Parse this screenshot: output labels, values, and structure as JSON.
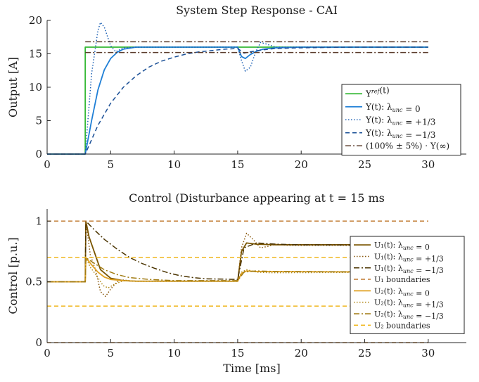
{
  "chart_data": [
    {
      "type": "line",
      "title": "System Step Response - CAI",
      "xlabel": "",
      "ylabel": "Output [A]",
      "xlim": [
        0,
        33
      ],
      "ylim": [
        0,
        20
      ],
      "xticks": [
        0,
        5,
        10,
        15,
        20,
        25,
        30
      ],
      "yticks": [
        0,
        5,
        10,
        15,
        20
      ],
      "legend_position": "bottom-right",
      "series": [
        {
          "name": "Y^{ref}(t)",
          "color": "#33b833",
          "style": "solid",
          "points": [
            [
              0,
              0
            ],
            [
              3,
              0
            ],
            [
              3,
              16
            ],
            [
              30,
              16
            ]
          ]
        },
        {
          "name": "Y(t): λ_unc = 0",
          "color": "#1f7fd6",
          "style": "solid",
          "points": [
            [
              0,
              0
            ],
            [
              3,
              0
            ],
            [
              3.5,
              5
            ],
            [
              4,
              9.6
            ],
            [
              4.5,
              12.6
            ],
            [
              5,
              14.3
            ],
            [
              5.5,
              15.2
            ],
            [
              6,
              15.7
            ],
            [
              7,
              16
            ],
            [
              15,
              16
            ],
            [
              15.3,
              14.6
            ],
            [
              15.6,
              14.3
            ],
            [
              16,
              14.9
            ],
            [
              16.5,
              15.4
            ],
            [
              17,
              15.7
            ],
            [
              18,
              15.9
            ],
            [
              20,
              16
            ],
            [
              30,
              16
            ]
          ]
        },
        {
          "name": "Y(t): λ_unc = +1/3",
          "color": "#1a5fb4",
          "style": "dotted",
          "points": [
            [
              0,
              0
            ],
            [
              3,
              0
            ],
            [
              3.5,
              12
            ],
            [
              4,
              18.5
            ],
            [
              4.2,
              19.7
            ],
            [
              4.5,
              19
            ],
            [
              5,
              16.2
            ],
            [
              5.4,
              15.3
            ],
            [
              6,
              15.9
            ],
            [
              7,
              16
            ],
            [
              15,
              16
            ],
            [
              15.3,
              14
            ],
            [
              15.6,
              12.4
            ],
            [
              16,
              13
            ],
            [
              16.4,
              15.2
            ],
            [
              16.8,
              16.7
            ],
            [
              17.2,
              16.5
            ],
            [
              18,
              16
            ],
            [
              30,
              16
            ]
          ]
        },
        {
          "name": "Y(t): λ_unc = −1/3",
          "color": "#1a4f96",
          "style": "dashed",
          "points": [
            [
              0,
              0
            ],
            [
              3,
              0
            ],
            [
              4,
              4.3
            ],
            [
              5,
              7.6
            ],
            [
              6,
              10
            ],
            [
              7,
              11.7
            ],
            [
              8,
              13
            ],
            [
              9,
              13.9
            ],
            [
              10,
              14.5
            ],
            [
              11,
              15
            ],
            [
              12,
              15.3
            ],
            [
              13,
              15.5
            ],
            [
              14,
              15.7
            ],
            [
              15,
              15.8
            ],
            [
              15.5,
              15.1
            ],
            [
              16,
              15.3
            ],
            [
              17,
              15.6
            ],
            [
              18,
              15.8
            ],
            [
              20,
              15.9
            ],
            [
              24,
              16
            ],
            [
              30,
              16
            ]
          ]
        },
        {
          "name": "(100% ± 5%) · Y(∞)",
          "color": "#5a3a2a",
          "style": "dashdot",
          "points": [
            [
              3,
              16.8
            ],
            [
              30,
              16.8
            ]
          ]
        },
        {
          "name": "(100% ± 5%) · Y(∞)",
          "color": "#5a3a2a",
          "style": "dashdot",
          "legend": false,
          "points": [
            [
              3,
              15.2
            ],
            [
              30,
              15.2
            ]
          ]
        }
      ]
    },
    {
      "type": "line",
      "title": "Control (Disturbance appearing at t = 15 ms",
      "xlabel": "Time [ms]",
      "ylabel": "Control [p.u.]",
      "xlim": [
        0,
        33
      ],
      "ylim": [
        0,
        1.1
      ],
      "xticks": [
        0,
        5,
        10,
        15,
        20,
        25,
        30
      ],
      "yticks": [
        0,
        0.5,
        1
      ],
      "legend_position": "right",
      "series": [
        {
          "name": "U₁(t): λ_unc = 0",
          "color": "#7a5500",
          "style": "solid",
          "points": [
            [
              0,
              0.5
            ],
            [
              3,
              0.5
            ],
            [
              3.05,
              1.0
            ],
            [
              3.3,
              0.87
            ],
            [
              3.7,
              0.75
            ],
            [
              4.2,
              0.6
            ],
            [
              5,
              0.53
            ],
            [
              6,
              0.51
            ],
            [
              7,
              0.505
            ],
            [
              15,
              0.505
            ],
            [
              15.3,
              0.75
            ],
            [
              15.7,
              0.82
            ],
            [
              16.5,
              0.81
            ],
            [
              18,
              0.805
            ],
            [
              30,
              0.805
            ]
          ]
        },
        {
          "name": "U₁(t): λ_unc = +1/3",
          "color": "#8a5a10",
          "style": "dotted",
          "points": [
            [
              0,
              0.5
            ],
            [
              3,
              0.5
            ],
            [
              3.05,
              1.0
            ],
            [
              3.4,
              0.72
            ],
            [
              3.8,
              0.6
            ],
            [
              4.2,
              0.42
            ],
            [
              4.6,
              0.38
            ],
            [
              5,
              0.44
            ],
            [
              5.5,
              0.5
            ],
            [
              6,
              0.515
            ],
            [
              7,
              0.505
            ],
            [
              15,
              0.505
            ],
            [
              15.3,
              0.78
            ],
            [
              15.7,
              0.9
            ],
            [
              16.2,
              0.85
            ],
            [
              16.8,
              0.78
            ],
            [
              17.3,
              0.79
            ],
            [
              18,
              0.81
            ],
            [
              19,
              0.8
            ],
            [
              30,
              0.8
            ]
          ]
        },
        {
          "name": "U₁(t): λ_unc = −1/3",
          "color": "#4a3300",
          "style": "dashdot",
          "points": [
            [
              0,
              0.5
            ],
            [
              3,
              0.5
            ],
            [
              3.05,
              1.0
            ],
            [
              3.7,
              0.93
            ],
            [
              4.5,
              0.85
            ],
            [
              5.5,
              0.77
            ],
            [
              6.5,
              0.7
            ],
            [
              7.5,
              0.65
            ],
            [
              8.5,
              0.61
            ],
            [
              9.5,
              0.575
            ],
            [
              10.5,
              0.55
            ],
            [
              11.5,
              0.535
            ],
            [
              12.5,
              0.525
            ],
            [
              15,
              0.52
            ],
            [
              15.5,
              0.78
            ],
            [
              16.5,
              0.82
            ],
            [
              18,
              0.81
            ],
            [
              20,
              0.805
            ],
            [
              30,
              0.8
            ]
          ]
        },
        {
          "name": "U₁ boundaries",
          "color": "#c07a30",
          "style": "dashed",
          "points": [
            [
              0,
              1
            ],
            [
              30,
              1
            ]
          ]
        },
        {
          "name": "U₁ boundaries",
          "color": "#c07a30",
          "style": "dashed",
          "legend": false,
          "points": [
            [
              0,
              0
            ],
            [
              30,
              0
            ]
          ]
        },
        {
          "name": "U₂(t): λ_unc = 0",
          "color": "#e0a020",
          "style": "solid",
          "points": [
            [
              0,
              0.5
            ],
            [
              3,
              0.5
            ],
            [
              3.05,
              0.7
            ],
            [
              3.5,
              0.64
            ],
            [
              4,
              0.58
            ],
            [
              4.5,
              0.54
            ],
            [
              5,
              0.52
            ],
            [
              6,
              0.51
            ],
            [
              7,
              0.505
            ],
            [
              15,
              0.505
            ],
            [
              15.3,
              0.57
            ],
            [
              15.7,
              0.59
            ],
            [
              16.5,
              0.585
            ],
            [
              30,
              0.58
            ]
          ]
        },
        {
          "name": "U₂(t): λ_unc = +1/3",
          "color": "#b08818",
          "style": "dotted",
          "points": [
            [
              0,
              0.5
            ],
            [
              3,
              0.5
            ],
            [
              3.05,
              0.7
            ],
            [
              3.4,
              0.62
            ],
            [
              3.9,
              0.55
            ],
            [
              4.4,
              0.47
            ],
            [
              4.8,
              0.45
            ],
            [
              5.3,
              0.48
            ],
            [
              6,
              0.51
            ],
            [
              7,
              0.505
            ],
            [
              15,
              0.505
            ],
            [
              15.3,
              0.58
            ],
            [
              15.7,
              0.6
            ],
            [
              16.5,
              0.58
            ],
            [
              17.5,
              0.575
            ],
            [
              30,
              0.58
            ]
          ]
        },
        {
          "name": "U₂(t): λ_unc = −1/3",
          "color": "#a07a10",
          "style": "dashdot",
          "points": [
            [
              0,
              0.5
            ],
            [
              3,
              0.5
            ],
            [
              3.05,
              0.7
            ],
            [
              3.6,
              0.66
            ],
            [
              4.5,
              0.6
            ],
            [
              5.5,
              0.56
            ],
            [
              6.5,
              0.535
            ],
            [
              8,
              0.52
            ],
            [
              10,
              0.51
            ],
            [
              15,
              0.51
            ],
            [
              15.5,
              0.58
            ],
            [
              16.5,
              0.59
            ],
            [
              18,
              0.585
            ],
            [
              30,
              0.58
            ]
          ]
        },
        {
          "name": "U₂ boundaries",
          "color": "#f0b820",
          "style": "dashed",
          "points": [
            [
              0,
              0.7
            ],
            [
              30,
              0.7
            ]
          ]
        },
        {
          "name": "U₂ boundaries",
          "color": "#f0b820",
          "style": "dashed",
          "legend": false,
          "points": [
            [
              0,
              0.3
            ],
            [
              30,
              0.3
            ]
          ]
        }
      ]
    }
  ]
}
